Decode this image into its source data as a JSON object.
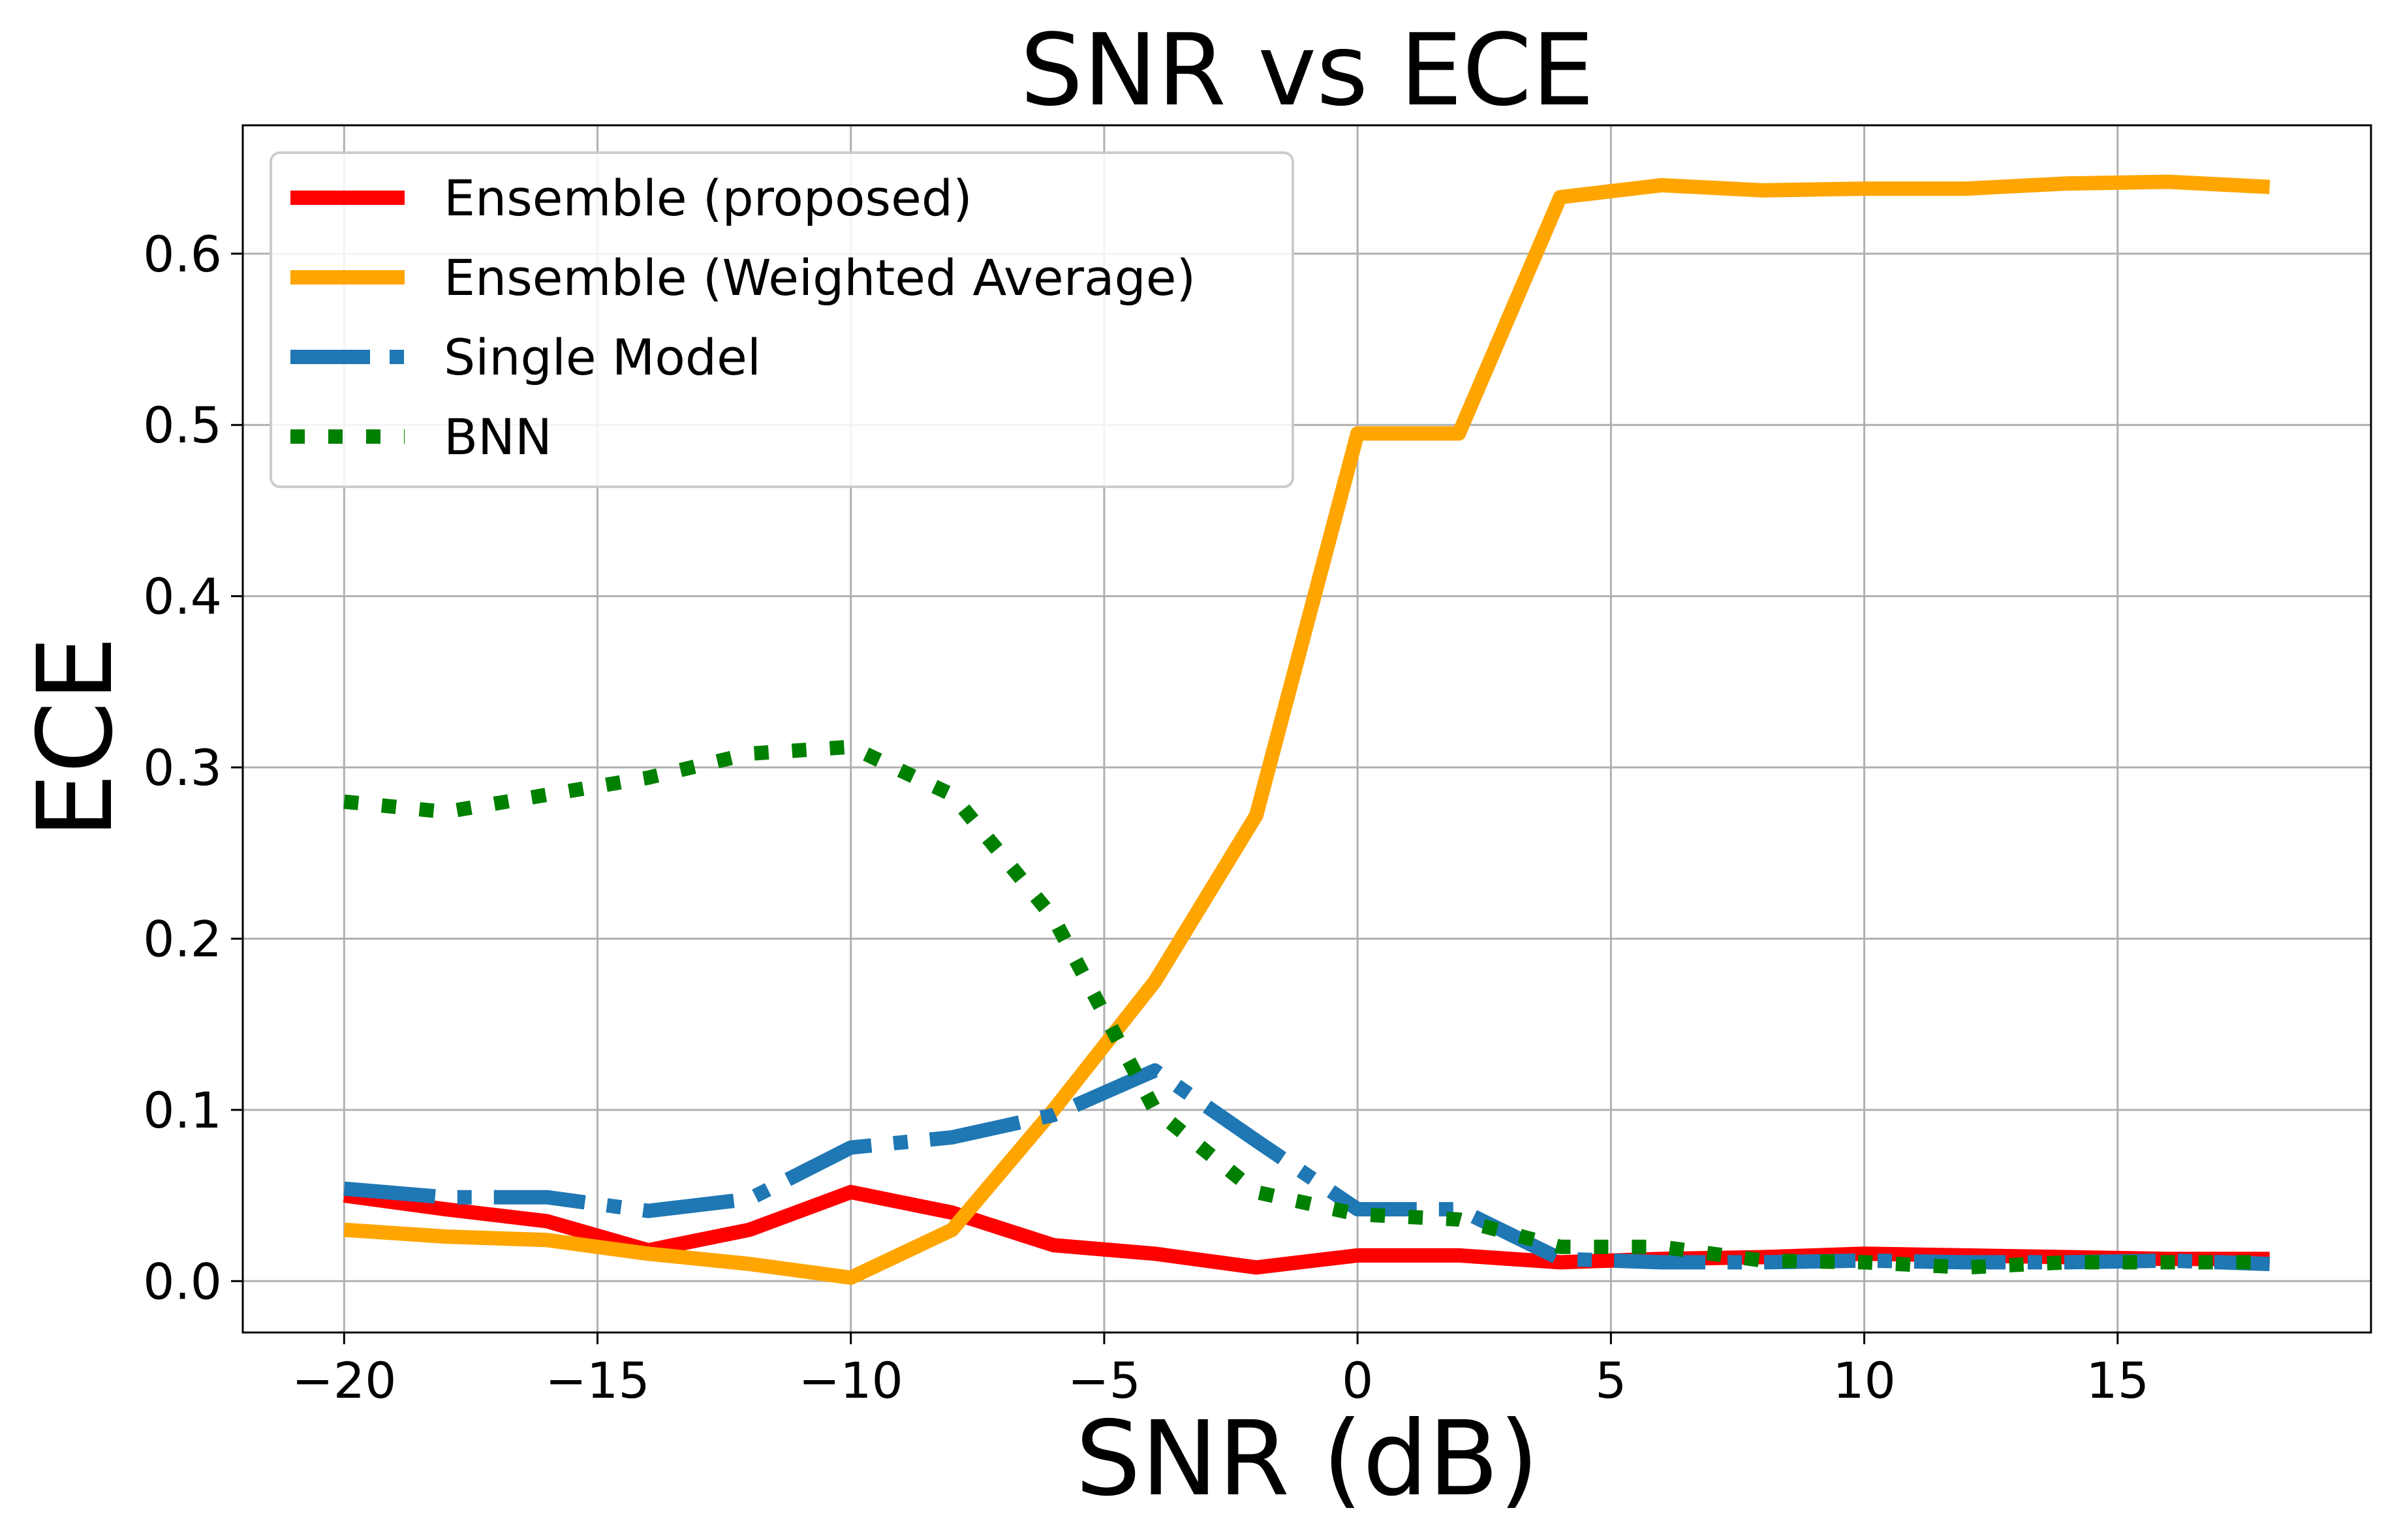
{
  "chart_data": {
    "type": "line",
    "title": "SNR vs ECE",
    "xlabel": "SNR (dB)",
    "ylabel": "ECE",
    "xlim": [
      -22,
      20
    ],
    "ylim": [
      -0.03,
      0.675
    ],
    "xticks": [
      -20,
      -15,
      -10,
      -5,
      0,
      5,
      10,
      15
    ],
    "xtick_labels": [
      "−20",
      "−15",
      "−10",
      "−5",
      "0",
      "5",
      "10",
      "15"
    ],
    "yticks": [
      0.0,
      0.1,
      0.2,
      0.3,
      0.4,
      0.5,
      0.6
    ],
    "ytick_labels": [
      "0.0",
      "0.1",
      "0.2",
      "0.3",
      "0.4",
      "0.5",
      "0.6"
    ],
    "grid": true,
    "legend_position": "upper-left",
    "x": [
      -20,
      -18,
      -16,
      -14,
      -12,
      -10,
      -8,
      -6,
      -4,
      -2,
      0,
      2,
      4,
      6,
      8,
      10,
      12,
      14,
      16,
      18
    ],
    "series": [
      {
        "name": "Ensemble (proposed)",
        "color": "#ff0000",
        "style": "solid",
        "values": [
          0.05,
          0.042,
          0.035,
          0.018,
          0.03,
          0.052,
          0.04,
          0.021,
          0.016,
          0.008,
          0.015,
          0.015,
          0.011,
          0.013,
          0.014,
          0.016,
          0.015,
          0.014,
          0.013,
          0.013
        ]
      },
      {
        "name": "Ensemble (Weighted Average)",
        "color": "#ffa500",
        "style": "solid",
        "values": [
          0.03,
          0.026,
          0.024,
          0.016,
          0.01,
          0.002,
          0.03,
          0.1,
          0.175,
          0.272,
          0.495,
          0.495,
          0.633,
          0.64,
          0.637,
          0.638,
          0.638,
          0.641,
          0.642,
          0.639
        ]
      },
      {
        "name": "Single Model",
        "color": "#1f77b4",
        "style": "dashdot",
        "values": [
          0.054,
          0.049,
          0.049,
          0.041,
          0.048,
          0.078,
          0.084,
          0.097,
          0.123,
          0.082,
          0.042,
          0.042,
          0.013,
          0.011,
          0.011,
          0.012,
          0.011,
          0.011,
          0.012,
          0.01
        ]
      },
      {
        "name": "BNN",
        "color": "#008000",
        "style": "dotted",
        "values": [
          0.28,
          0.274,
          0.284,
          0.294,
          0.308,
          0.312,
          0.284,
          0.212,
          0.1,
          0.052,
          0.039,
          0.036,
          0.02,
          0.02,
          0.012,
          0.011,
          0.008,
          0.011,
          0.011,
          0.011
        ]
      }
    ]
  }
}
